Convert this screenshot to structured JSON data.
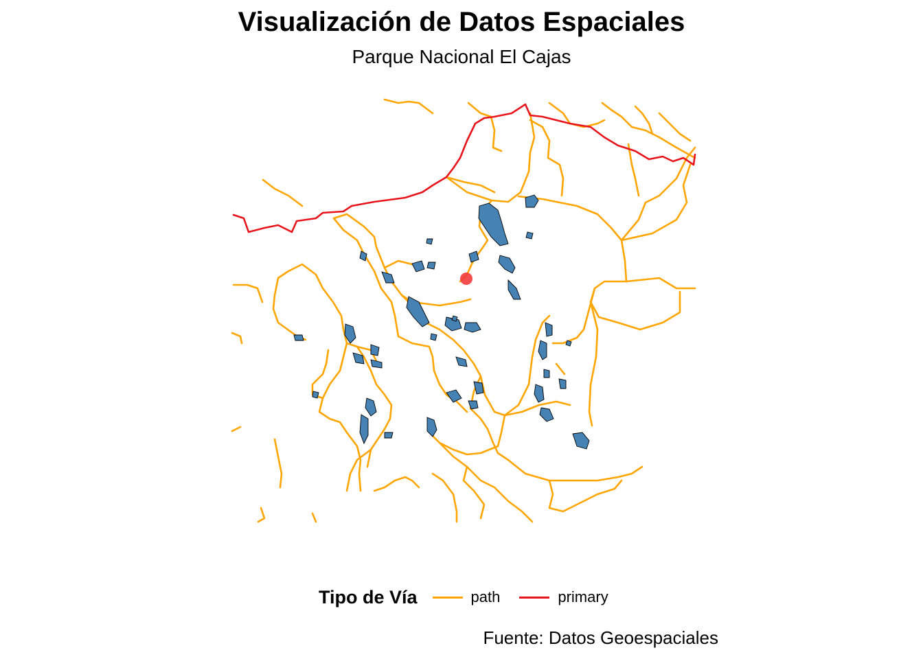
{
  "title": "Visualización de Datos Espaciales",
  "subtitle": "Parque Nacional El Cajas",
  "caption": "Fuente: Datos Geoespaciales",
  "legend": {
    "title": "Tipo de Vía",
    "items": [
      {
        "label": "path",
        "color": "#FFA500"
      },
      {
        "label": "primary",
        "color": "#E8141C"
      }
    ]
  },
  "colors": {
    "path": "#FFA500",
    "primary": "#E8141C",
    "water_fill": "#4682B4",
    "water_outline": "#000000",
    "point": "#F23B3B"
  }
}
